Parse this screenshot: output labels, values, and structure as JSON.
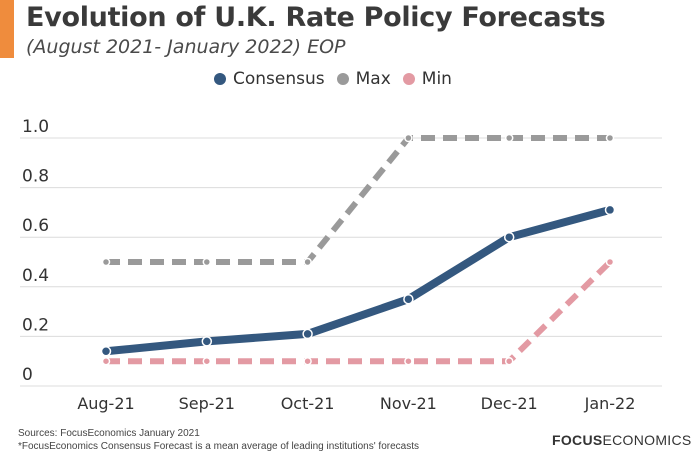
{
  "header": {
    "title": "Evolution of U.K. Rate Policy Forecasts",
    "subtitle": "(August 2021- January 2022) EOP",
    "accent_color": "#ef8c3d"
  },
  "footer": {
    "sources": "Sources: FocusEconomics January 2021",
    "note": "*FocusEconomics Consensus Forecast is a mean average of leading institutions' forecasts",
    "brand_bold": "FOCUS",
    "brand_light": "ECONOMICS"
  },
  "chart_data": {
    "type": "line",
    "title": "Evolution of U.K. Rate Policy Forecasts",
    "subtitle": "(August 2021- January 2022) EOP",
    "xlabel": "",
    "ylabel": "",
    "categories": [
      "Aug-21",
      "Sep-21",
      "Oct-21",
      "Nov-21",
      "Dec-21",
      "Jan-22"
    ],
    "ylim": [
      0,
      1.0
    ],
    "yticks": [
      0,
      0.2,
      0.4,
      0.6,
      0.8,
      1.0
    ],
    "ytick_labels": [
      "0",
      "0.2",
      "0.4",
      "0.6",
      "0.8",
      "1.0"
    ],
    "grid": true,
    "legend_position": "top-center",
    "series": [
      {
        "name": "Consensus",
        "color": "#34587f",
        "style": "solid",
        "values": [
          0.14,
          0.18,
          0.21,
          0.35,
          0.6,
          0.71
        ]
      },
      {
        "name": "Max",
        "color": "#9a9a9a",
        "style": "dashed",
        "values": [
          0.5,
          0.5,
          0.5,
          1.0,
          1.0,
          1.0
        ]
      },
      {
        "name": "Min",
        "color": "#e39aa3",
        "style": "dashed",
        "values": [
          0.1,
          0.1,
          0.1,
          0.1,
          0.1,
          0.5
        ]
      }
    ]
  }
}
